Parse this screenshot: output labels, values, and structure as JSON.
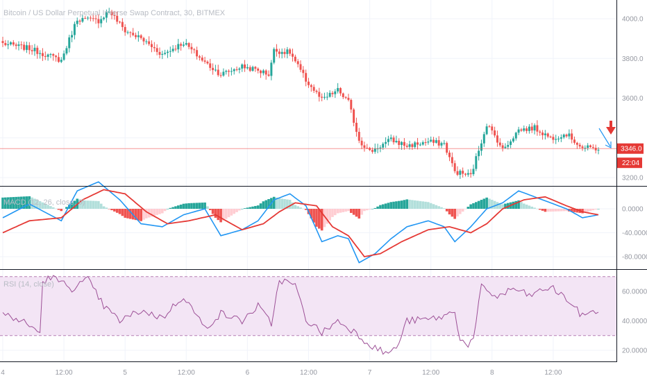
{
  "colors": {
    "up": "#26a69a",
    "down": "#ef5350",
    "macd_line": "#2196f3",
    "signal_line": "#e53935",
    "hist_up_strong": "#26a69a",
    "hist_up_weak": "#b2dfdb",
    "hist_down_strong": "#ef5350",
    "hist_down_weak": "#ffcdd2",
    "rsi_line": "#9c4f96",
    "rsi_band": "#f3e5f5",
    "price_line": "#ef5350",
    "price_tag": "#e53935",
    "annotation_arrow_blue": "#2196f3",
    "annotation_arrow_red": "#e53935",
    "grid": "#f0f3fa",
    "separator": "#131722"
  },
  "icons": [
    "down-arrow-annotation-icon",
    "diagonal-arrow-annotation-icon"
  ],
  "chart_data": [
    {
      "type": "candlestick",
      "title": "Bitcoin / US Dollar Perpetual Inverse Swap Contract, 30, BITMEX",
      "ylim": [
        3150,
        4100
      ],
      "yticks": [
        "4000.0",
        "3800.0",
        "3600.0",
        "3400.0",
        "3200.0"
      ],
      "grid": true,
      "last_price": "3346.0",
      "countdown": "22:04",
      "x_tick_labels": [
        "4",
        "12:00",
        "5",
        "12:00",
        "6",
        "12:00",
        "7",
        "12:00",
        "8",
        "12:00"
      ],
      "anchors": {
        "x": [
          0,
          10,
          22,
          28,
          36,
          40,
          46,
          52,
          60,
          68,
          76,
          82,
          90,
          96,
          100,
          102,
          108,
          114,
          120,
          126,
          130,
          134,
          138,
          146,
          152,
          160,
          166,
          170,
          176,
          182,
          186,
          188,
          194,
          200,
          206,
          212,
          218,
          224
        ],
        "close": [
          3875,
          3850,
          3790,
          4000,
          3990,
          4040,
          3940,
          3900,
          3820,
          3880,
          3780,
          3720,
          3760,
          3740,
          3720,
          3840,
          3830,
          3690,
          3590,
          3640,
          3580,
          3390,
          3330,
          3390,
          3360,
          3380,
          3370,
          3230,
          3210,
          3470,
          3390,
          3340,
          3440,
          3450,
          3400,
          3420,
          3350,
          3346
        ]
      }
    },
    {
      "type": "macd",
      "title": "MACD (12, 26, close, 9)",
      "ylim": [
        -95,
        70
      ],
      "yticks": [
        "0.0000",
        "-40.0000",
        "-80.0000"
      ],
      "macd_anchors": {
        "x": [
          0,
          10,
          22,
          28,
          36,
          44,
          52,
          60,
          68,
          76,
          82,
          90,
          96,
          102,
          108,
          114,
          120,
          126,
          130,
          134,
          140,
          146,
          152,
          160,
          166,
          170,
          176,
          182,
          188,
          194,
          200,
          206,
          212,
          218,
          224
        ],
        "value": [
          -15,
          8,
          -20,
          30,
          45,
          15,
          -25,
          -30,
          -10,
          0,
          -45,
          -35,
          -20,
          15,
          25,
          5,
          -55,
          -45,
          -50,
          -90,
          -75,
          -50,
          -30,
          -20,
          -30,
          -55,
          -30,
          0,
          10,
          30,
          20,
          10,
          0,
          -15,
          -10
        ]
      },
      "signal_anchors": {
        "x": [
          0,
          10,
          22,
          30,
          38,
          46,
          54,
          62,
          70,
          80,
          90,
          98,
          104,
          110,
          118,
          124,
          130,
          136,
          142,
          150,
          160,
          168,
          176,
          182,
          188,
          196,
          204,
          212,
          218,
          224
        ],
        "value": [
          -40,
          -20,
          -15,
          15,
          32,
          25,
          -5,
          -25,
          -20,
          -10,
          -35,
          -25,
          -5,
          10,
          5,
          -30,
          -45,
          -80,
          -75,
          -55,
          -35,
          -30,
          -40,
          -25,
          0,
          15,
          20,
          5,
          -5,
          -10
        ]
      }
    },
    {
      "type": "rsi",
      "title": "RSI (14, close)",
      "ylim": [
        14,
        74
      ],
      "yticks": [
        "60.0000",
        "40.0000",
        "20.0000"
      ],
      "band": [
        30,
        70
      ],
      "anchors": {
        "x": [
          0,
          8,
          14,
          15,
          18,
          26,
          32,
          38,
          44,
          52,
          60,
          68,
          76,
          82,
          90,
          96,
          101,
          104,
          110,
          114,
          120,
          126,
          132,
          138,
          144,
          148,
          152,
          160,
          166,
          170,
          172,
          175,
          177,
          180,
          186,
          192,
          198,
          206,
          212,
          218,
          222,
          224
        ],
        "value": [
          45,
          39,
          32,
          66,
          70,
          62,
          68,
          50,
          40,
          47,
          42,
          57,
          35,
          45,
          40,
          50,
          38,
          68,
          64,
          41,
          32,
          40,
          33,
          24,
          18,
          21,
          40,
          41,
          43,
          47,
          27,
          24,
          27,
          63,
          56,
          62,
          57,
          63,
          55,
          43,
          48,
          44
        ]
      }
    }
  ]
}
